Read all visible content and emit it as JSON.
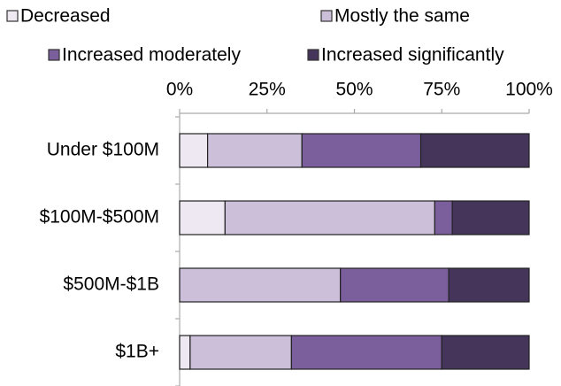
{
  "chart_data": {
    "type": "stacked-barh",
    "categories": [
      "Under $100M",
      "$100M-$500M",
      "$500M-$1B",
      "$1B+"
    ],
    "series": [
      {
        "name": "Decreased",
        "color": "#ede8f1",
        "values": [
          8,
          13,
          0,
          3
        ]
      },
      {
        "name": "Mostly the same",
        "color": "#cbbfd9",
        "values": [
          27,
          60,
          46,
          29
        ]
      },
      {
        "name": "Increased moderately",
        "color": "#7b5f9c",
        "values": [
          34,
          5,
          31,
          43
        ]
      },
      {
        "name": "Increased significantly",
        "color": "#45355a",
        "values": [
          31,
          22,
          23,
          25
        ]
      }
    ],
    "xlim": [
      0,
      100
    ],
    "xticks": [
      {
        "value": 0,
        "label": "0%"
      },
      {
        "value": 25,
        "label": "25%"
      },
      {
        "value": 50,
        "label": "50%"
      },
      {
        "value": 75,
        "label": "75%"
      },
      {
        "value": 100,
        "label": "100%"
      }
    ],
    "legend": "top"
  }
}
